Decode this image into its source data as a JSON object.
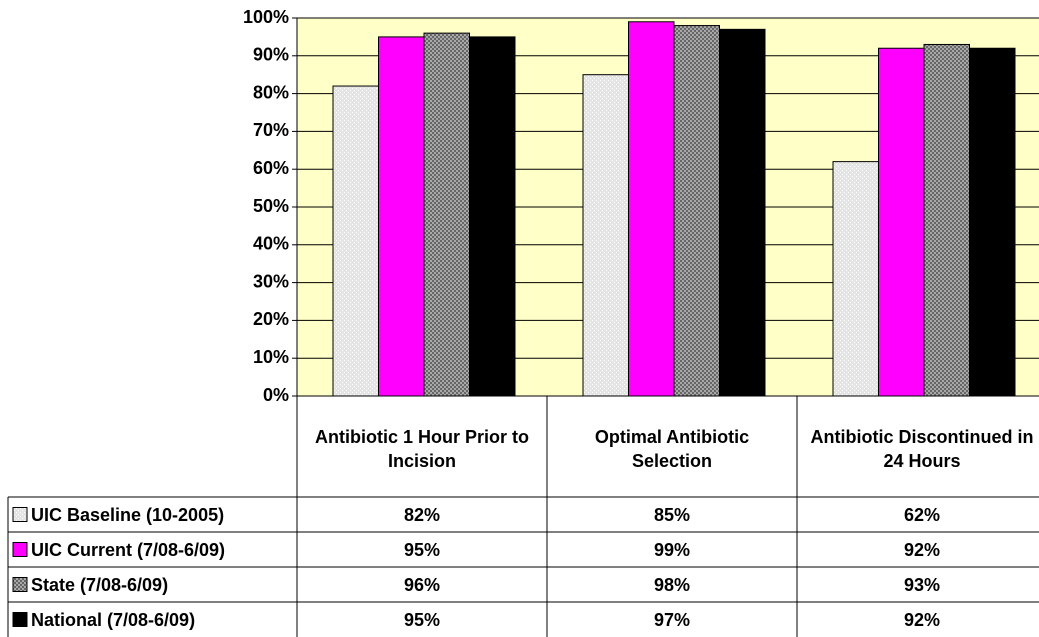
{
  "chart_data": {
    "type": "bar",
    "categories": [
      "Antibiotic 1 Hour Prior to Incision",
      "Optimal Antibiotic Selection",
      "Antibiotic Discontinued in 24 Hours"
    ],
    "series": [
      {
        "name": "UIC Baseline (10-2005)",
        "color": "#e4e4e4",
        "pattern": "dots",
        "values": [
          82,
          85,
          62
        ],
        "value_labels": [
          "82%",
          "85%",
          "62%"
        ]
      },
      {
        "name": "UIC Current (7/08-6/09)",
        "color": "#ff00ff",
        "values": [
          95,
          99,
          92
        ],
        "value_labels": [
          "95%",
          "99%",
          "92%"
        ]
      },
      {
        "name": "State (7/08-6/09)",
        "color": "#a8a8a8",
        "pattern": "checks",
        "values": [
          96,
          98,
          93
        ],
        "value_labels": [
          "96%",
          "98%",
          "93%"
        ]
      },
      {
        "name": "National (7/08-6/09)",
        "color": "#000000",
        "values": [
          95,
          97,
          92
        ],
        "value_labels": [
          "95%",
          "97%",
          "92%"
        ]
      }
    ],
    "ylim": [
      0,
      100
    ],
    "yticks": [
      {
        "value": 0,
        "label": "0%"
      },
      {
        "value": 10,
        "label": "10%"
      },
      {
        "value": 20,
        "label": "20%"
      },
      {
        "value": 30,
        "label": "30%"
      },
      {
        "value": 40,
        "label": "40%"
      },
      {
        "value": 50,
        "label": "50%"
      },
      {
        "value": 60,
        "label": "60%"
      },
      {
        "value": 70,
        "label": "70%"
      },
      {
        "value": 80,
        "label": "80%"
      },
      {
        "value": 90,
        "label": "90%"
      },
      {
        "value": 100,
        "label": "100%"
      }
    ],
    "grid": true,
    "plot_background": "#ffffc8"
  }
}
